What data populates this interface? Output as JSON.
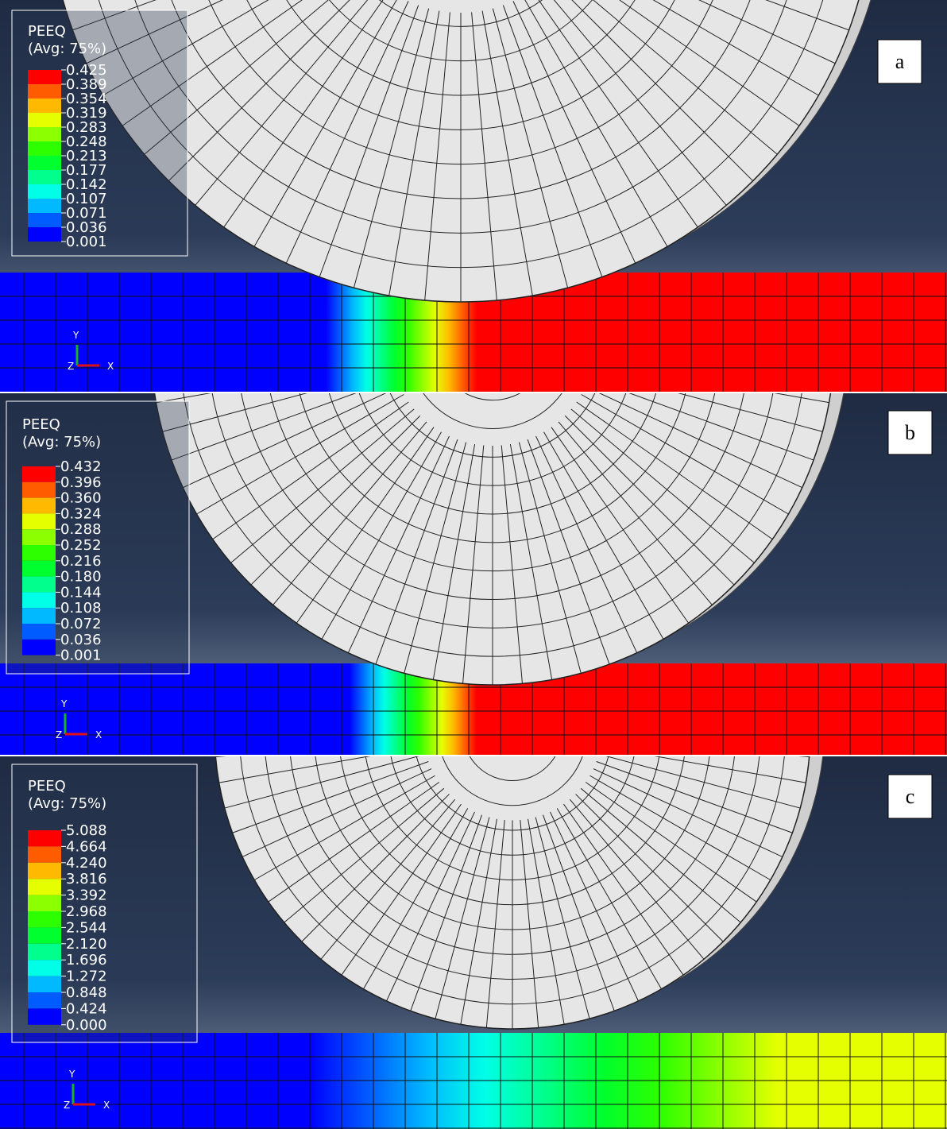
{
  "panels": [
    {
      "label": "a",
      "legend": {
        "title": "PEEQ",
        "subtitle": "(Avg: 75%)",
        "values": [
          "0.425",
          "0.389",
          "0.354",
          "0.319",
          "0.283",
          "0.248",
          "0.213",
          "0.177",
          "0.142",
          "0.107",
          "0.071",
          "0.036",
          "0.001"
        ]
      },
      "triad": {
        "y": "Y",
        "z": "Z",
        "x": "X"
      }
    },
    {
      "label": "b",
      "legend": {
        "title": "PEEQ",
        "subtitle": "(Avg: 75%)",
        "values": [
          "0.432",
          "0.396",
          "0.360",
          "0.324",
          "0.288",
          "0.252",
          "0.216",
          "0.180",
          "0.144",
          "0.108",
          "0.072",
          "0.036",
          "0.001"
        ]
      },
      "triad": {
        "y": "Y",
        "z": "Z",
        "x": "X"
      }
    },
    {
      "label": "c",
      "legend": {
        "title": "PEEQ",
        "subtitle": "(Avg: 75%)",
        "values": [
          "5.088",
          "4.664",
          "4.240",
          "3.816",
          "3.392",
          "2.968",
          "2.544",
          "2.120",
          "1.696",
          "1.272",
          "0.848",
          "0.424",
          "0.000"
        ]
      },
      "triad": {
        "y": "Y",
        "z": "Z",
        "x": "X"
      }
    }
  ]
}
